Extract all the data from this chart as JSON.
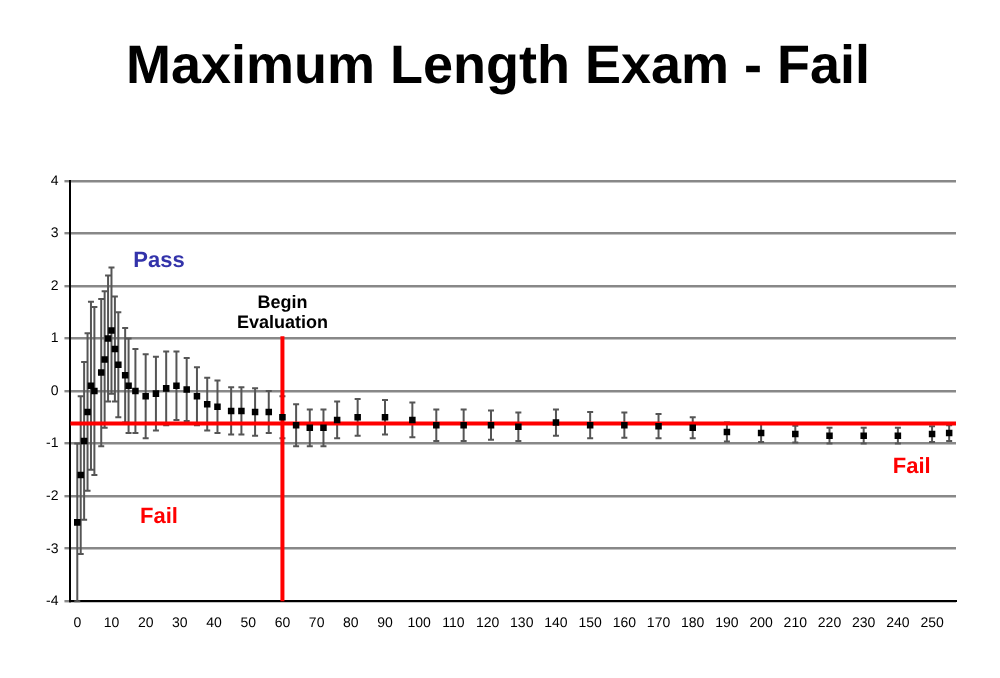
{
  "chart_data": {
    "type": "scatter",
    "title": "Maximum Length Exam - Fail",
    "x": [
      0,
      1,
      2,
      3,
      4,
      5,
      7,
      8,
      9,
      10,
      11,
      12,
      14,
      15,
      17,
      20,
      23,
      26,
      29,
      32,
      35,
      38,
      41,
      45,
      48,
      52,
      56,
      60,
      64,
      68,
      72,
      76,
      82,
      90,
      98,
      105,
      113,
      121,
      129,
      140,
      150,
      160,
      170,
      180,
      190,
      200,
      210,
      220,
      230,
      240,
      250,
      255
    ],
    "series": [
      {
        "color": "#000000",
        "values": [
          -2.5,
          -1.6,
          -0.95,
          -0.4,
          0.1,
          0.0,
          0.35,
          0.6,
          1.0,
          1.15,
          0.8,
          0.5,
          0.3,
          0.1,
          0.0,
          -0.1,
          -0.05,
          0.05,
          0.1,
          0.03,
          -0.1,
          -0.25,
          -0.3,
          -0.38,
          -0.38,
          -0.4,
          -0.4,
          -0.5,
          -0.65,
          -0.7,
          -0.7,
          -0.55,
          -0.5,
          -0.5,
          -0.55,
          -0.65,
          -0.65,
          -0.65,
          -0.68,
          -0.6,
          -0.65,
          -0.65,
          -0.67,
          -0.7,
          -0.78,
          -0.8,
          -0.82,
          -0.85,
          -0.85,
          -0.85,
          -0.82,
          -0.8
        ],
        "errors": [
          1.5,
          1.5,
          1.5,
          1.5,
          1.6,
          1.6,
          1.4,
          1.3,
          1.2,
          1.2,
          1.0,
          1.0,
          0.9,
          0.9,
          0.8,
          0.8,
          0.7,
          0.7,
          0.65,
          0.6,
          0.55,
          0.5,
          0.5,
          0.45,
          0.45,
          0.45,
          0.4,
          0.4,
          0.4,
          0.35,
          0.35,
          0.35,
          0.35,
          0.33,
          0.33,
          0.3,
          0.3,
          0.28,
          0.27,
          0.25,
          0.25,
          0.24,
          0.23,
          0.2,
          0.18,
          0.17,
          0.16,
          0.15,
          0.15,
          0.15,
          0.15,
          0.15
        ]
      }
    ],
    "xlim": [
      -2,
      257
    ],
    "xticks": [
      0,
      10,
      20,
      30,
      40,
      50,
      60,
      70,
      80,
      90,
      100,
      110,
      120,
      130,
      140,
      150,
      160,
      170,
      180,
      190,
      200,
      210,
      220,
      230,
      240,
      250
    ],
    "ylim": [
      -4,
      4
    ],
    "yticks": [
      -4,
      -3,
      -2,
      -1,
      0,
      1,
      2,
      3,
      4
    ],
    "grid": "y",
    "marker": "square",
    "legend": false,
    "ref_lines": [
      {
        "axis": "y",
        "value": -0.62,
        "color": "#ff0000"
      },
      {
        "axis": "x",
        "value": 60,
        "label": "Begin Evaluation",
        "color": "#ff0000"
      }
    ],
    "annotations": [
      "Pass",
      "Fail",
      "Fail"
    ]
  }
}
